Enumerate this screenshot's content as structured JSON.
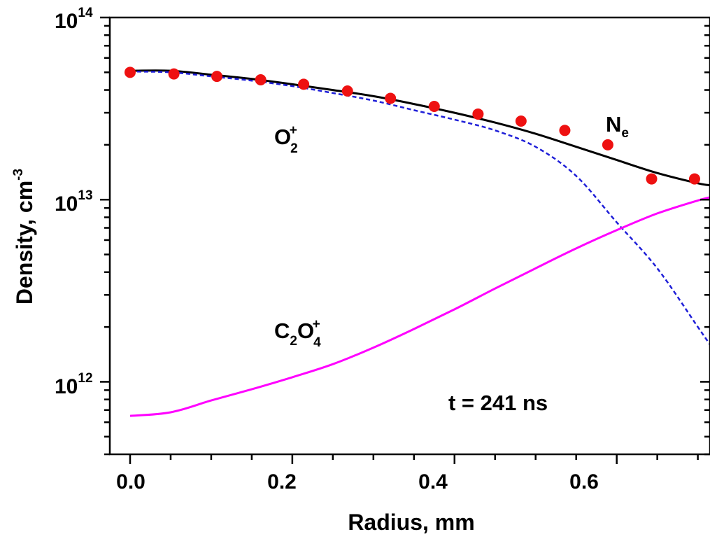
{
  "chart_data": {
    "type": "line",
    "xlabel": "Radius, mm",
    "ylabel": "Density, cm",
    "ylabel_sup": "-3",
    "xlim": [
      -0.025,
      0.715
    ],
    "ylim": [
      400000000000.0,
      100000000000000.0
    ],
    "yscale": "log",
    "x_ticks": [
      "0.0",
      "0.2",
      "0.4",
      "0.6"
    ],
    "y_ticks": [
      {
        "base": "10",
        "exp": "12"
      },
      {
        "base": "10",
        "exp": "13"
      },
      {
        "base": "10",
        "exp": "14"
      }
    ],
    "annotation": "t = 241 ns",
    "series": [
      {
        "name": "N",
        "name_sub": "e",
        "style": "solid",
        "color": "#000000",
        "x": [
          0,
          0.05,
          0.1,
          0.15,
          0.2,
          0.25,
          0.3,
          0.35,
          0.4,
          0.45,
          0.5,
          0.55,
          0.6,
          0.65,
          0.7,
          0.715
        ],
        "y": [
          51000000000000.0,
          51000000000000.0,
          48500000000000.0,
          46000000000000.0,
          43000000000000.0,
          40000000000000.0,
          37000000000000.0,
          33500000000000.0,
          30000000000000.0,
          26500000000000.0,
          23000000000000.0,
          19500000000000.0,
          16500000000000.0,
          14000000000000.0,
          12300000000000.0,
          12000000000000.0
        ]
      },
      {
        "name": "O",
        "name_sub": "2",
        "name_sup": "+",
        "style": "dashed",
        "color": "#1f1fd8",
        "x": [
          0,
          0.05,
          0.1,
          0.15,
          0.2,
          0.25,
          0.3,
          0.35,
          0.4,
          0.45,
          0.5,
          0.55,
          0.6,
          0.65,
          0.7,
          0.715
        ],
        "y": [
          50500000000000.0,
          50000000000000.0,
          47500000000000.0,
          45000000000000.0,
          42000000000000.0,
          38500000000000.0,
          35000000000000.0,
          31000000000000.0,
          27500000000000.0,
          24000000000000.0,
          19500000000000.0,
          13500000000000.0,
          7500000000000.0,
          4200000000000.0,
          2000000000000.0,
          1600000000000.0
        ]
      },
      {
        "name": "C",
        "name_sub": "2",
        "name_mid": "O",
        "name_sub2": "4",
        "name_sup": "+",
        "style": "solid",
        "color": "#ff00ff",
        "x": [
          0,
          0.05,
          0.1,
          0.15,
          0.2,
          0.25,
          0.3,
          0.35,
          0.4,
          0.45,
          0.5,
          0.55,
          0.6,
          0.65,
          0.7,
          0.715
        ],
        "y": [
          650000000000.0,
          680000000000.0,
          790000000000.0,
          910000000000.0,
          1060000000000.0,
          1250000000000.0,
          1540000000000.0,
          1950000000000.0,
          2500000000000.0,
          3250000000000.0,
          4200000000000.0,
          5400000000000.0,
          6800000000000.0,
          8400000000000.0,
          9900000000000.0,
          10300000000000.0
        ]
      },
      {
        "name": "N",
        "name_sub": "e",
        "style": "markers",
        "color": "#ee1111",
        "x": [
          0,
          0.054,
          0.107,
          0.161,
          0.214,
          0.268,
          0.321,
          0.375,
          0.429,
          0.482,
          0.536,
          0.589,
          0.643,
          0.696
        ],
        "y": [
          50000000000000.0,
          49000000000000.0,
          47500000000000.0,
          45500000000000.0,
          43000000000000.0,
          39500000000000.0,
          36000000000000.0,
          32500000000000.0,
          29500000000000.0,
          27000000000000.0,
          24000000000000.0,
          20000000000000.0,
          13000000000000.0,
          13000000000000.0
        ]
      }
    ]
  }
}
